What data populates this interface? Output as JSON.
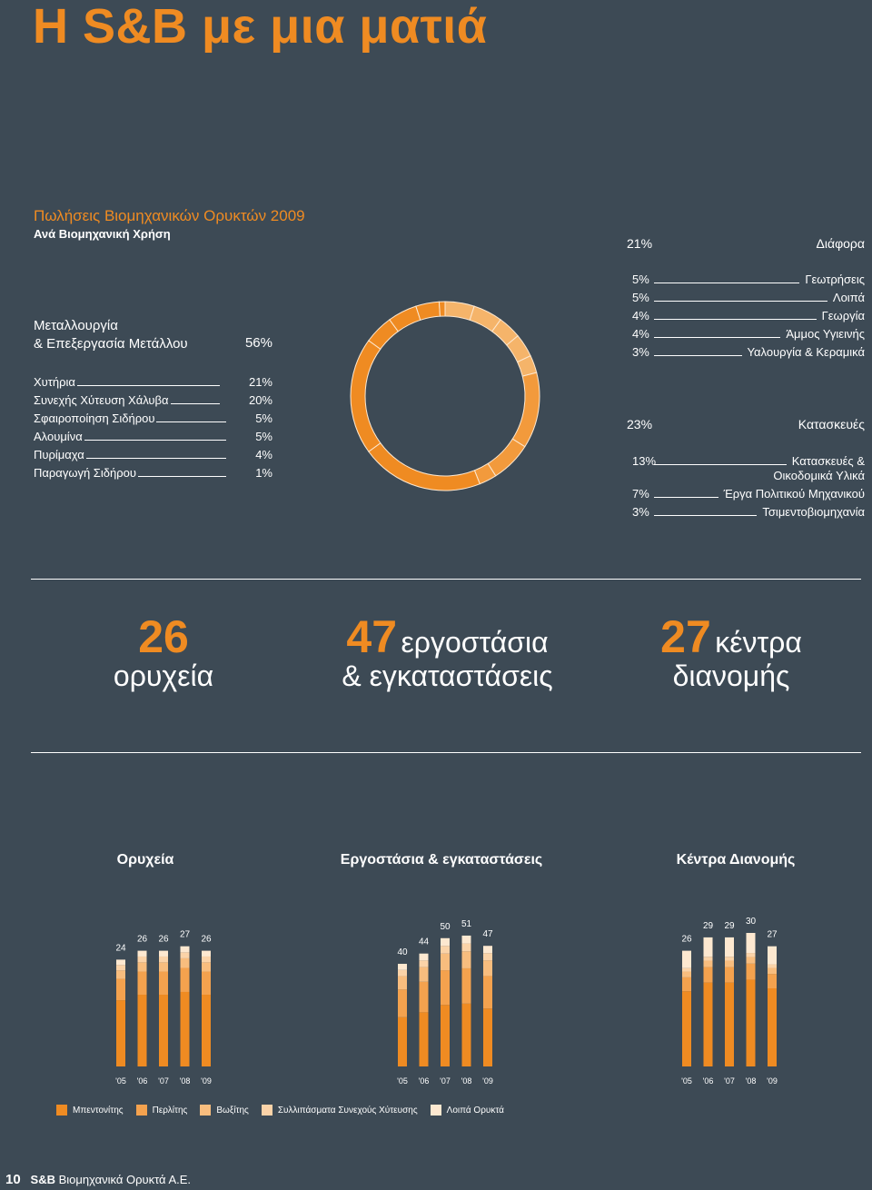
{
  "page_title": "Η S&B με μια ματιά",
  "sales": {
    "title": "Πωλήσεις Βιομηχανικών Ορυκτών 2009",
    "subtitle": "Ανά Βιομηχανική Χρήση",
    "metallurgy": {
      "label1": "Μεταλλουργία",
      "label2": "& Επεξεργασία Μετάλλου",
      "pct": "56%",
      "items": [
        {
          "label": "Χυτήρια",
          "pct": "21%"
        },
        {
          "label": "Συνεχής Χύτευση Χάλυβα",
          "pct": "20%"
        },
        {
          "label": "Σφαιροποίηση Σιδήρου",
          "pct": "5%"
        },
        {
          "label": "Αλουμίνα",
          "pct": "5%"
        },
        {
          "label": "Πυρίμαχα",
          "pct": "4%"
        },
        {
          "label": "Παραγωγή Σιδήρου",
          "pct": "1%"
        }
      ]
    },
    "misc": {
      "label": "Διάφορα",
      "pct": "21%",
      "items": [
        {
          "label": "Γεωτρήσεις",
          "pct": "5%"
        },
        {
          "label": "Λοιπά",
          "pct": "5%"
        },
        {
          "label": "Γεωργία",
          "pct": "4%"
        },
        {
          "label": "Άμμος Υγιεινής",
          "pct": "4%"
        },
        {
          "label": "Υαλουργία & Κεραμικά",
          "pct": "3%"
        }
      ]
    },
    "construction": {
      "label": "Κατασκευές",
      "pct": "23%",
      "items": [
        {
          "label": "Κατασκευές &",
          "label2": "Οικοδομικά Υλικά",
          "pct": "13%"
        },
        {
          "label": "Έργα Πολιτικού Μηχανικού",
          "pct": "7%"
        },
        {
          "label": "Τσιμεντοβιομηχανία",
          "pct": "3%"
        }
      ]
    },
    "donut_colors": {
      "metallurgy": "#ef8b22",
      "misc": "#f5b46a",
      "construction": "#f29a3c"
    }
  },
  "stats": [
    {
      "num": "26",
      "line1": "",
      "line2": "ορυχεία"
    },
    {
      "num": "47",
      "line1": "εργοστάσια",
      "line2": "& εγκαταστάσεις"
    },
    {
      "num": "27",
      "line1": "κέντρα",
      "line2": "διανομής"
    }
  ],
  "chart_data": [
    {
      "type": "bar",
      "title": "Ορυχεία",
      "categories": [
        "'05",
        "'06",
        "'07",
        "'08",
        "'09"
      ],
      "values": [
        24,
        26,
        26,
        27,
        26
      ],
      "ylim": [
        0,
        30
      ]
    },
    {
      "type": "bar",
      "title": "Εργοστάσια & εγκαταστάσεις",
      "categories": [
        "'05",
        "'06",
        "'07",
        "'08",
        "'09"
      ],
      "values": [
        40,
        44,
        50,
        51,
        47
      ],
      "ylim": [
        0,
        51
      ]
    },
    {
      "type": "bar",
      "title": "Κέντρα Διανομής",
      "categories": [
        "'05",
        "'06",
        "'07",
        "'08",
        "'09"
      ],
      "values": [
        26,
        29,
        29,
        30,
        27
      ],
      "ylim": [
        0,
        30
      ]
    }
  ],
  "legend": [
    {
      "label": "Μπεντονίτης",
      "color": "#ef8b22"
    },
    {
      "label": "Περλίτης",
      "color": "#f4a24e"
    },
    {
      "label": "Βωξίτης",
      "color": "#f8bd7e"
    },
    {
      "label": "Συλλιπάσματα Συνεχούς Χύτευσης",
      "color": "#fbd3a8"
    },
    {
      "label": "Λοιπά Ορυκτά",
      "color": "#fde8d0"
    }
  ],
  "footer": {
    "page": "10",
    "brand": "S&B",
    "company": "Βιομηχανικά Ορυκτά Α.Ε."
  }
}
